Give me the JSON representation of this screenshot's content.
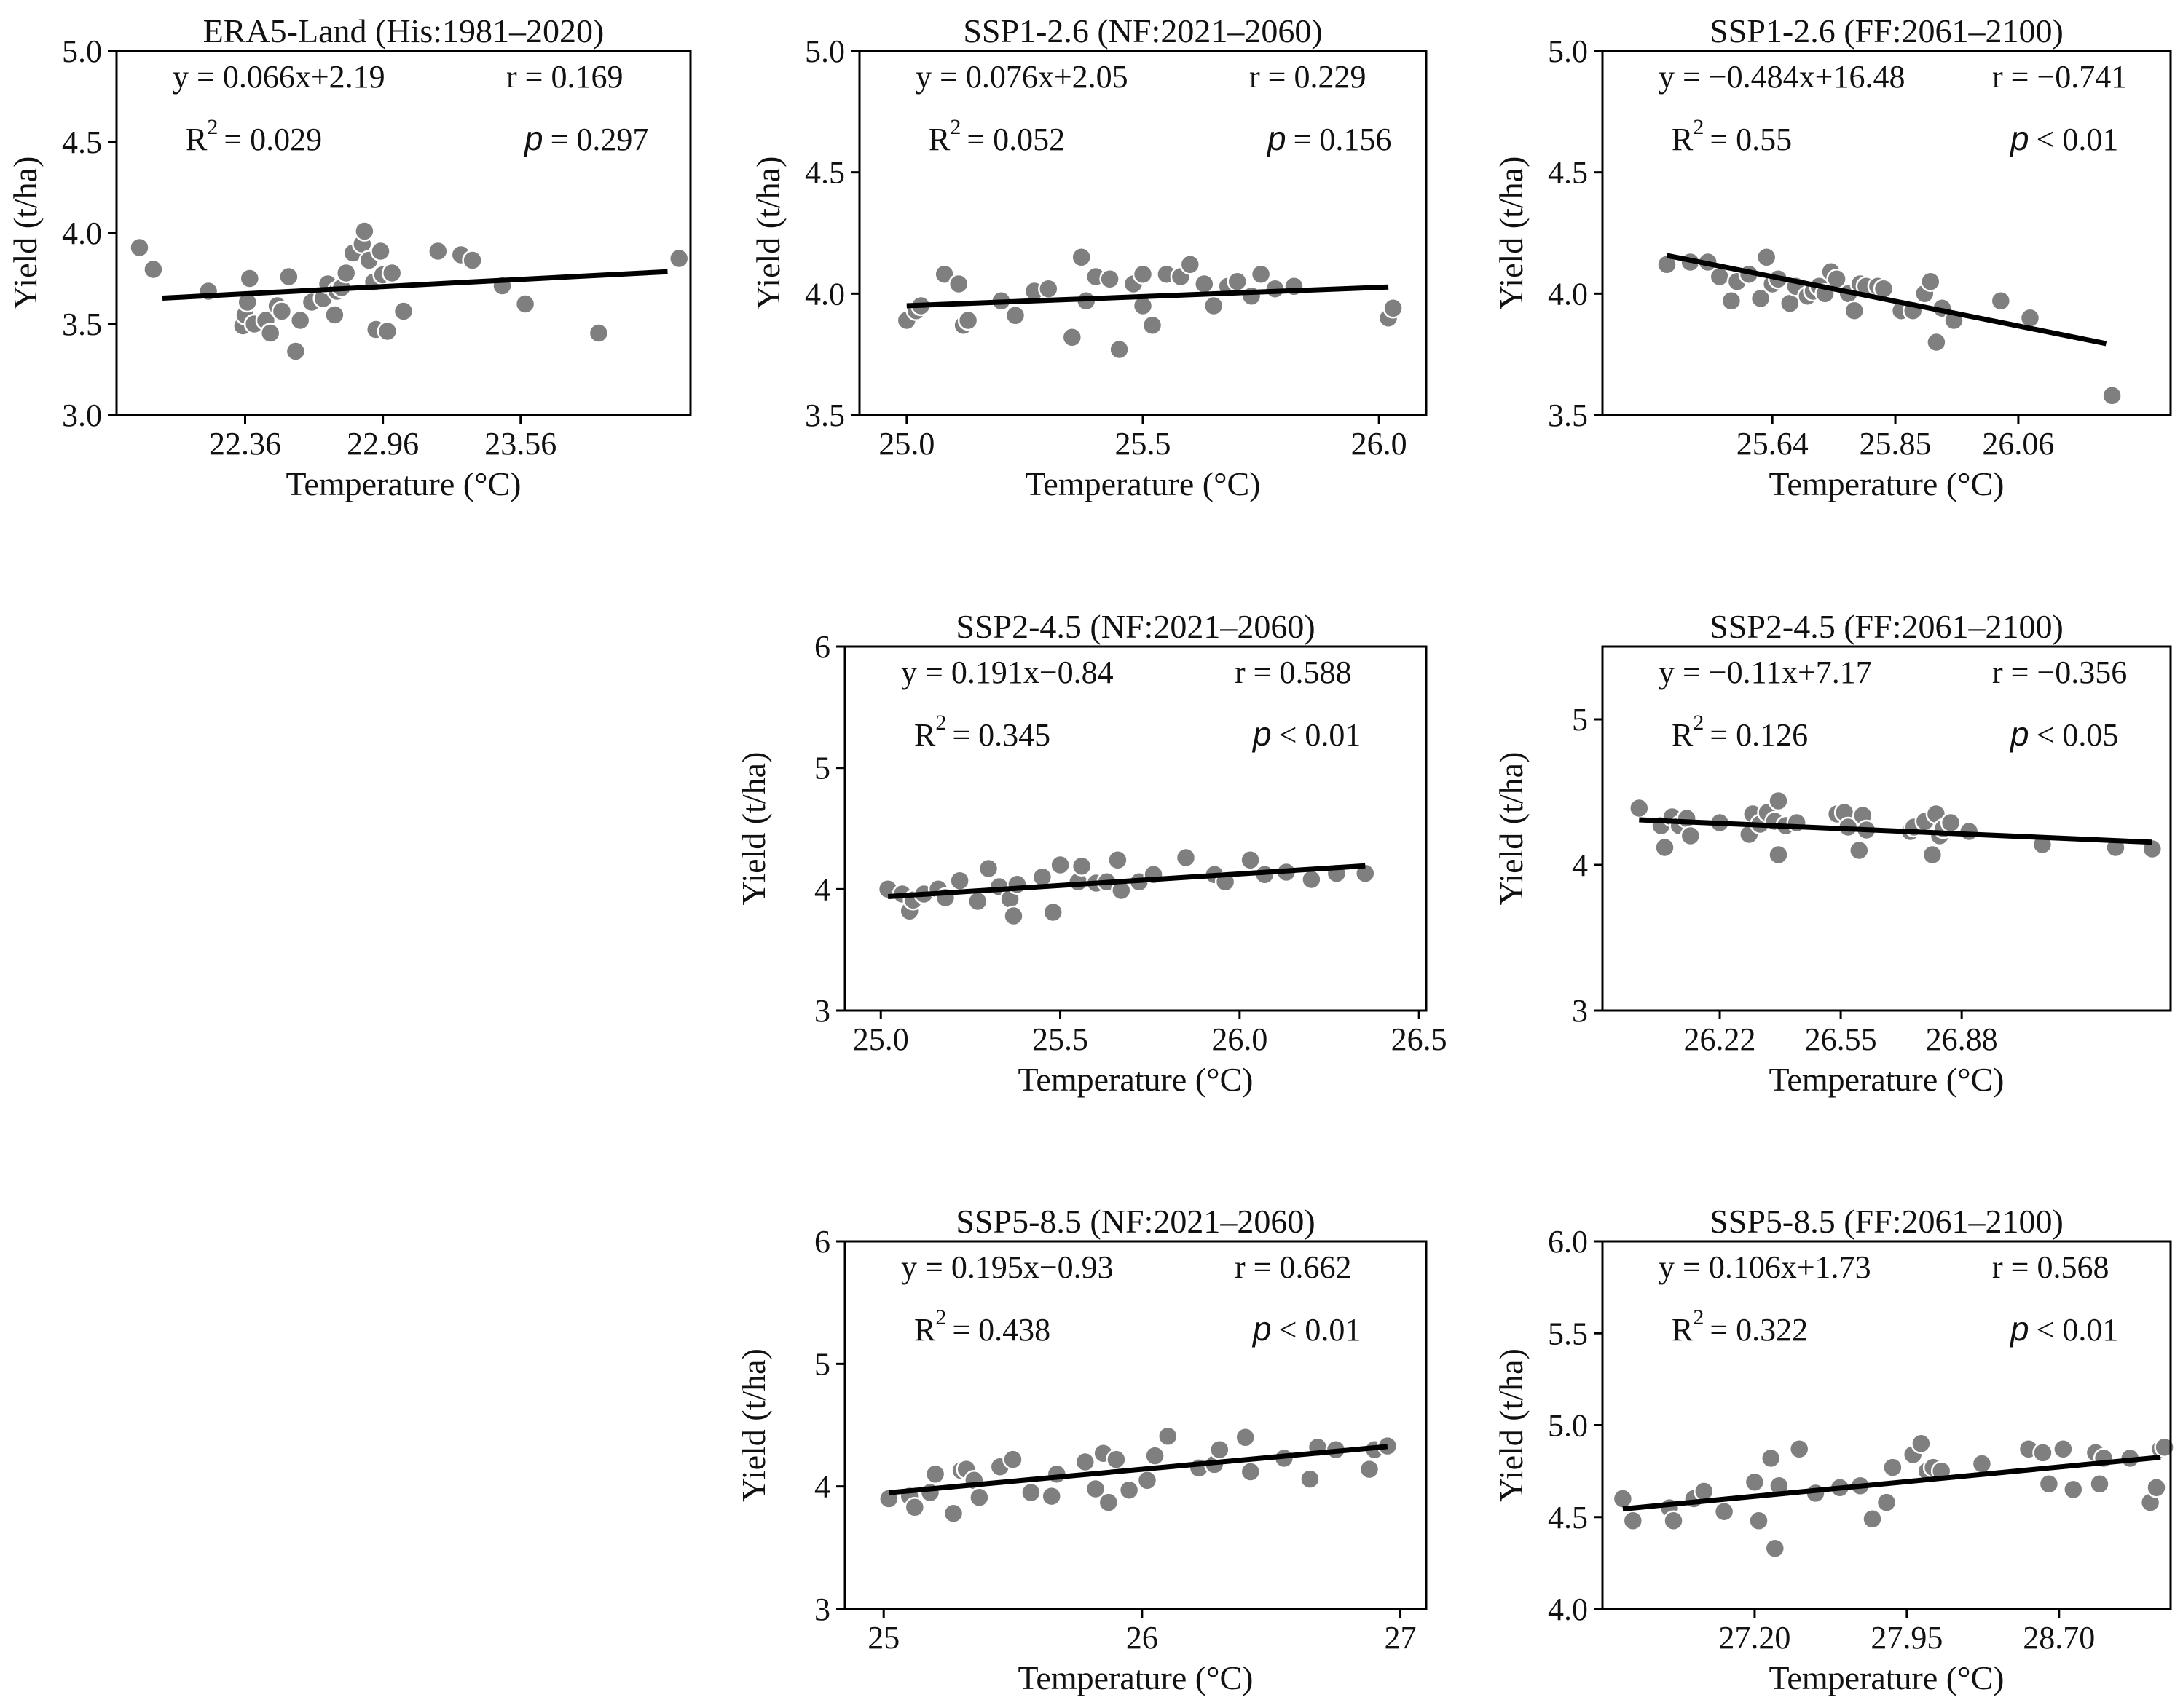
{
  "figure": {
    "xlabel": "Temperature (°C)",
    "ylabel": "Yield (t/ha)",
    "p_symbol": "p",
    "point_color": "#7f7f7f",
    "line_color": "#000000"
  },
  "chart_data": [
    {
      "type": "scatter",
      "title": "ERA5-Land (His:1981–2020)",
      "xlabel": "Temperature (°C)",
      "ylabel": "Yield (t/ha)",
      "xlim": [
        21.8,
        24.3
      ],
      "ylim": [
        3.0,
        5.0
      ],
      "xticks": [
        22.36,
        22.96,
        23.56
      ],
      "xtick_labels": [
        "22.36",
        "22.96",
        "23.56"
      ],
      "yticks": [
        3.0,
        3.5,
        4.0,
        4.5,
        5.0
      ],
      "ytick_labels": [
        "3.0",
        "3.5",
        "4.0",
        "4.5",
        "5.0"
      ],
      "equation": "y = 0.066x+2.19",
      "r_text": "r = 0.169",
      "r2_value": "= 0.029",
      "p_value": "= 0.297",
      "line": {
        "slope": 0.066,
        "intercept": 2.19,
        "x": [
          22.0,
          24.2
        ]
      },
      "x": [
        21.9,
        21.96,
        22.2,
        22.35,
        22.36,
        22.37,
        22.38,
        22.4,
        22.45,
        22.47,
        22.5,
        22.52,
        22.55,
        22.58,
        22.6,
        22.65,
        22.7,
        22.72,
        22.75,
        22.76,
        22.78,
        22.8,
        22.83,
        22.87,
        22.88,
        22.9,
        22.92,
        22.93,
        22.95,
        22.96,
        22.98,
        23.0,
        23.05,
        23.2,
        23.3,
        23.35,
        23.48,
        23.58,
        23.9,
        24.25
      ],
      "y": [
        3.92,
        3.8,
        3.68,
        3.49,
        3.55,
        3.62,
        3.75,
        3.5,
        3.52,
        3.45,
        3.6,
        3.57,
        3.76,
        3.35,
        3.52,
        3.62,
        3.64,
        3.72,
        3.55,
        3.68,
        3.7,
        3.78,
        3.89,
        3.94,
        4.01,
        3.85,
        3.73,
        3.47,
        3.9,
        3.77,
        3.46,
        3.78,
        3.57,
        3.9,
        3.88,
        3.85,
        3.71,
        3.61,
        3.45,
        3.86
      ]
    },
    {
      "type": "scatter",
      "title": "SSP1-2.6 (NF:2021–2060)",
      "xlabel": "Temperature (°C)",
      "ylabel": "Yield (t/ha)",
      "xlim": [
        24.9,
        26.1
      ],
      "ylim": [
        3.5,
        5.0
      ],
      "xticks": [
        25.0,
        25.5,
        26.0
      ],
      "xtick_labels": [
        "25.0",
        "25.5",
        "26.0"
      ],
      "yticks": [
        3.5,
        4.0,
        4.5,
        5.0
      ],
      "ytick_labels": [
        "3.5",
        "4.0",
        "4.5",
        "5.0"
      ],
      "equation": "y = 0.076x+2.05",
      "r_text": "r = 0.229",
      "r2_value": "= 0.052",
      "p_value": "= 0.156",
      "line": {
        "slope": 0.076,
        "intercept": 2.05,
        "x": [
          25.0,
          26.02
        ]
      },
      "x": [
        25.0,
        25.02,
        25.03,
        25.08,
        25.11,
        25.12,
        25.13,
        25.2,
        25.23,
        25.27,
        25.3,
        25.35,
        25.37,
        25.38,
        25.4,
        25.43,
        25.45,
        25.48,
        25.5,
        25.5,
        25.52,
        25.55,
        25.58,
        25.6,
        25.63,
        25.65,
        25.68,
        25.7,
        25.73,
        25.75,
        25.78,
        25.82,
        26.02,
        26.03
      ],
      "y": [
        3.89,
        3.93,
        3.95,
        4.08,
        4.04,
        3.87,
        3.89,
        3.97,
        3.91,
        4.01,
        4.02,
        3.82,
        4.15,
        3.97,
        4.07,
        4.06,
        3.77,
        4.04,
        4.08,
        3.95,
        3.87,
        4.08,
        4.07,
        4.12,
        4.04,
        3.95,
        4.03,
        4.05,
        3.99,
        4.08,
        4.02,
        4.03,
        3.9,
        3.94
      ]
    },
    {
      "type": "scatter",
      "title": "SSP1-2.6 (FF:2061–2100)",
      "xlabel": "Temperature (°C)",
      "ylabel": "Yield (t/ha)",
      "xlim": [
        25.35,
        26.32
      ],
      "ylim": [
        3.5,
        5.0
      ],
      "xticks": [
        25.64,
        25.85,
        26.06
      ],
      "xtick_labels": [
        "25.64",
        "25.85",
        "26.06"
      ],
      "yticks": [
        3.5,
        4.0,
        4.5,
        5.0
      ],
      "ytick_labels": [
        "3.5",
        "4.0",
        "4.5",
        "5.0"
      ],
      "equation": "y = −0.484x+16.48",
      "r_text": "r = −0.741",
      "r2_value": "= 0.55",
      "p_value": "< 0.01",
      "line": {
        "slope": -0.484,
        "intercept": 16.48,
        "x": [
          25.46,
          26.21
        ]
      },
      "x": [
        25.46,
        25.5,
        25.53,
        25.55,
        25.57,
        25.58,
        25.6,
        25.62,
        25.63,
        25.64,
        25.65,
        25.67,
        25.68,
        25.7,
        25.71,
        25.72,
        25.73,
        25.74,
        25.75,
        25.77,
        25.78,
        25.79,
        25.8,
        25.82,
        25.83,
        25.86,
        25.88,
        25.9,
        25.91,
        25.92,
        25.93,
        25.95,
        26.03,
        26.08,
        26.22
      ],
      "y": [
        4.12,
        4.13,
        4.13,
        4.07,
        3.97,
        4.05,
        4.08,
        3.98,
        4.15,
        4.04,
        4.06,
        3.96,
        4.03,
        3.99,
        4.01,
        4.03,
        4.0,
        4.09,
        4.06,
        4.0,
        3.93,
        4.04,
        4.03,
        4.03,
        4.02,
        3.93,
        3.93,
        4.0,
        4.05,
        3.8,
        3.94,
        3.89,
        3.97,
        3.9,
        3.58
      ]
    },
    {
      "type": "scatter",
      "title": "SSP2-4.5 (NF:2021–2060)",
      "xlabel": "Temperature (°C)",
      "ylabel": "Yield (t/ha)",
      "xlim": [
        24.9,
        26.52
      ],
      "ylim": [
        3,
        6
      ],
      "xticks": [
        25.0,
        25.5,
        26.0,
        26.5
      ],
      "xtick_labels": [
        "25.0",
        "25.5",
        "26.0",
        "26.5"
      ],
      "yticks": [
        3,
        4,
        5,
        6
      ],
      "ytick_labels": [
        "3",
        "4",
        "5",
        "6"
      ],
      "equation": "y = 0.191x−0.84",
      "r_text": "r = 0.588",
      "r2_value": "= 0.345",
      "p_value": "< 0.01",
      "line": {
        "slope": 0.191,
        "intercept": -0.84,
        "x": [
          25.02,
          26.35
        ]
      },
      "x": [
        25.02,
        25.06,
        25.08,
        25.09,
        25.12,
        25.16,
        25.18,
        25.22,
        25.27,
        25.3,
        25.33,
        25.36,
        25.37,
        25.38,
        25.45,
        25.48,
        25.5,
        25.55,
        25.56,
        25.6,
        25.63,
        25.66,
        25.67,
        25.72,
        25.76,
        25.85,
        25.93,
        25.96,
        26.03,
        26.07,
        26.13,
        26.2,
        26.27,
        26.35
      ],
      "y": [
        4.0,
        3.96,
        3.82,
        3.91,
        3.96,
        4.0,
        3.93,
        4.07,
        3.9,
        4.17,
        4.02,
        3.92,
        3.78,
        4.04,
        4.1,
        3.81,
        4.2,
        4.06,
        4.19,
        4.05,
        4.06,
        4.24,
        3.99,
        4.06,
        4.12,
        4.26,
        4.12,
        4.06,
        4.24,
        4.12,
        4.14,
        4.08,
        4.13,
        4.13
      ]
    },
    {
      "type": "scatter",
      "title": "SSP2-4.5 (FF:2061–2100)",
      "xlabel": "Temperature (°C)",
      "ylabel": "Yield (t/ha)",
      "xlim": [
        25.9,
        27.45
      ],
      "ylim": [
        3,
        5.5
      ],
      "xticks": [
        26.22,
        26.55,
        26.88
      ],
      "xtick_labels": [
        "26.22",
        "26.55",
        "26.88"
      ],
      "yticks": [
        3,
        4,
        5
      ],
      "ytick_labels": [
        "3",
        "4",
        "5"
      ],
      "equation": "y = −0.11x+7.17",
      "r_text": "r = −0.356",
      "r2_value": "= 0.126",
      "p_value": "< 0.05",
      "line": {
        "slope": -0.11,
        "intercept": 7.17,
        "x": [
          26.0,
          27.4
        ]
      },
      "x": [
        26.0,
        26.06,
        26.07,
        26.09,
        26.11,
        26.13,
        26.14,
        26.22,
        26.3,
        26.31,
        26.33,
        26.35,
        26.37,
        26.38,
        26.38,
        26.4,
        26.43,
        26.54,
        26.56,
        26.57,
        26.6,
        26.61,
        26.62,
        26.74,
        26.75,
        26.78,
        26.8,
        26.81,
        26.82,
        26.83,
        26.85,
        26.9,
        27.1,
        27.3,
        27.4
      ],
      "y": [
        4.39,
        4.27,
        4.12,
        4.33,
        4.27,
        4.32,
        4.2,
        4.29,
        4.21,
        4.35,
        4.28,
        4.36,
        4.3,
        4.44,
        4.07,
        4.27,
        4.29,
        4.35,
        4.36,
        4.26,
        4.1,
        4.34,
        4.24,
        4.23,
        4.26,
        4.3,
        4.07,
        4.35,
        4.2,
        4.25,
        4.29,
        4.23,
        4.14,
        4.12,
        4.11
      ]
    },
    {
      "type": "scatter",
      "title": "SSP5-8.5 (NF:2021–2060)",
      "xlabel": "Temperature (°C)",
      "ylabel": "Yield (t/ha)",
      "xlim": [
        24.85,
        27.1
      ],
      "ylim": [
        3,
        6
      ],
      "xticks": [
        25,
        26,
        27
      ],
      "xtick_labels": [
        "25",
        "26",
        "27"
      ],
      "yticks": [
        3,
        4,
        5,
        6
      ],
      "ytick_labels": [
        "3",
        "4",
        "5",
        "6"
      ],
      "equation": "y = 0.195x−0.93",
      "r_text": "r = 0.662",
      "r2_value": "= 0.438",
      "p_value": "< 0.01",
      "line": {
        "slope": 0.195,
        "intercept": -0.93,
        "x": [
          25.02,
          26.95
        ]
      },
      "x": [
        25.02,
        25.1,
        25.12,
        25.18,
        25.2,
        25.27,
        25.3,
        25.32,
        25.35,
        25.37,
        25.45,
        25.5,
        25.57,
        25.65,
        25.67,
        25.78,
        25.82,
        25.85,
        25.87,
        25.9,
        25.95,
        26.02,
        26.05,
        26.1,
        26.22,
        26.28,
        26.3,
        26.4,
        26.42,
        26.55,
        26.65,
        26.68,
        26.75,
        26.88,
        26.9,
        26.95
      ],
      "y": [
        3.9,
        3.92,
        3.83,
        3.95,
        4.1,
        3.78,
        4.13,
        4.14,
        4.05,
        3.91,
        4.16,
        4.22,
        3.95,
        3.92,
        4.1,
        4.2,
        3.98,
        4.27,
        3.87,
        4.22,
        3.97,
        4.05,
        4.25,
        4.41,
        4.15,
        4.18,
        4.3,
        4.4,
        4.12,
        4.23,
        4.06,
        4.32,
        4.3,
        4.14,
        4.3,
        4.33
      ]
    },
    {
      "type": "scatter",
      "title": "SSP5-8.5 (FF:2061–2100)",
      "xlabel": "Temperature (°C)",
      "ylabel": "Yield (t/ha)",
      "xlim": [
        26.45,
        29.25
      ],
      "ylim": [
        4.0,
        6.0
      ],
      "xticks": [
        27.2,
        27.95,
        28.7
      ],
      "xtick_labels": [
        "27.20",
        "27.95",
        "28.70"
      ],
      "yticks": [
        4.0,
        4.5,
        5.0,
        5.5,
        6.0
      ],
      "ytick_labels": [
        "4.0",
        "4.5",
        "5.0",
        "5.5",
        "6.0"
      ],
      "equation": "y = 0.106x+1.73",
      "r_text": "r = 0.568",
      "r2_value": "= 0.322",
      "p_value": "< 0.01",
      "line": {
        "slope": 0.106,
        "intercept": 1.73,
        "x": [
          26.55,
          29.2
        ]
      },
      "x": [
        26.55,
        26.6,
        26.78,
        26.8,
        26.9,
        26.95,
        27.05,
        27.2,
        27.22,
        27.28,
        27.3,
        27.32,
        27.42,
        27.5,
        27.62,
        27.72,
        27.78,
        27.85,
        27.88,
        27.98,
        28.02,
        28.05,
        28.08,
        28.12,
        28.32,
        28.55,
        28.62,
        28.65,
        28.72,
        28.77,
        28.88,
        28.9,
        28.92,
        29.05,
        29.15,
        29.18,
        29.2,
        29.22
      ],
      "y": [
        4.6,
        4.48,
        4.55,
        4.48,
        4.6,
        4.64,
        4.53,
        4.69,
        4.48,
        4.82,
        4.33,
        4.67,
        4.87,
        4.63,
        4.66,
        4.67,
        4.49,
        4.58,
        4.77,
        4.84,
        4.9,
        4.75,
        4.77,
        4.75,
        4.79,
        4.87,
        4.85,
        4.68,
        4.87,
        4.65,
        4.85,
        4.68,
        4.82,
        4.82,
        4.58,
        4.66,
        4.87,
        4.88
      ]
    }
  ]
}
